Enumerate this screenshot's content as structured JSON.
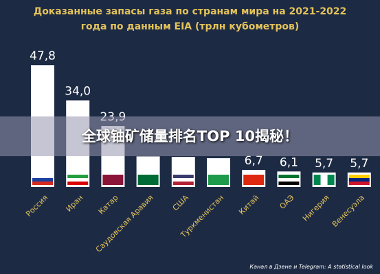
{
  "chart_data": {
    "type": "bar",
    "title": "Доказанные запасы газа по странам мира на 2021-2022 года по данным EIA (трлн кубометров)",
    "categories": [
      "Россия",
      "Иран",
      "Катар",
      "Саудовская Аравия",
      "США",
      "Туркменистан",
      "Китай",
      "ОАЭ",
      "Нигерия",
      "Венесуэла"
    ],
    "values": [
      47.8,
      34.0,
      23.9,
      12.0,
      11.8,
      11.3,
      6.7,
      6.1,
      5.7,
      5.7
    ],
    "value_labels": [
      "47,8",
      "34,0",
      "23,9",
      null,
      null,
      null,
      "6,7",
      "6,1",
      "5,7",
      "5,7"
    ],
    "color": "#ffffff",
    "ylim": [
      0,
      50
    ],
    "footer": "Канал в Дзене и Telegram: A statistical look"
  },
  "overlay_title": "全球铀矿储量排名TOP 10揭秘！"
}
